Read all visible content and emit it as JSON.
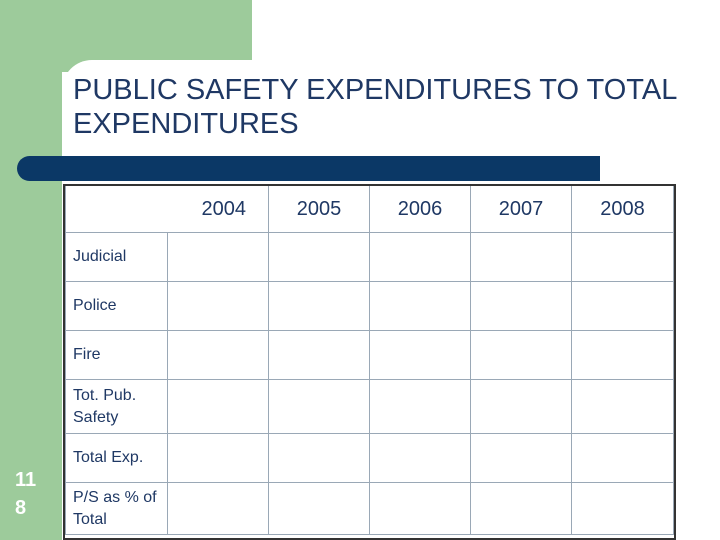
{
  "slide": {
    "title": "PUBLIC SAFETY EXPENDITURES TO TOTAL EXPENDITURES",
    "page_number": "11\n8"
  },
  "table": {
    "years": [
      "2004",
      "2005",
      "2006",
      "2007",
      "2008"
    ],
    "rows": [
      {
        "label": "Judicial",
        "cells": [
          "",
          "",
          "",
          "",
          ""
        ]
      },
      {
        "label": "Police",
        "cells": [
          "",
          "",
          "",
          "",
          ""
        ]
      },
      {
        "label": "Fire",
        "cells": [
          "",
          "",
          "",
          "",
          ""
        ]
      },
      {
        "label": "Tot. Pub. Safety",
        "cells": [
          "",
          "",
          "",
          "",
          ""
        ]
      },
      {
        "label": "Total Exp.",
        "cells": [
          "",
          "",
          "",
          "",
          ""
        ]
      },
      {
        "label": "P/S as % of Total",
        "cells": [
          "",
          "",
          "",
          "",
          ""
        ]
      }
    ]
  },
  "colors": {
    "accent_green": "#9dcb9b",
    "bar_navy": "#0b3866",
    "text_navy": "#1f3864"
  }
}
